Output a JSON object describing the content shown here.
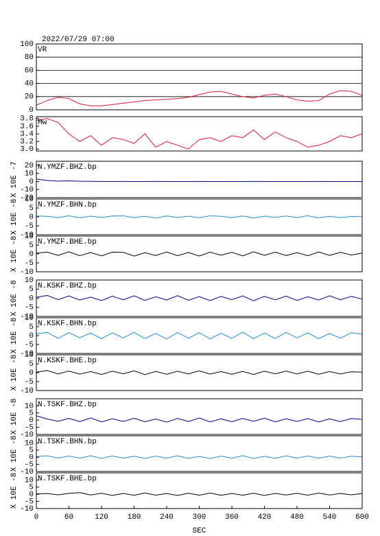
{
  "chart_data": [
    {
      "type": "line",
      "title": "2022/07/29 07:00",
      "xlim": [
        0,
        600
      ],
      "x": [
        0,
        20,
        40,
        60,
        80,
        100,
        120,
        140,
        160,
        180,
        200,
        220,
        240,
        260,
        280,
        300,
        320,
        340,
        360,
        380,
        400,
        420,
        440,
        460,
        480,
        500,
        520,
        540,
        560,
        580,
        600
      ],
      "ylim": [
        0,
        100
      ],
      "yticks": [
        0,
        20,
        40,
        60,
        80,
        100
      ],
      "grid": true,
      "series": [
        {
          "name": "VR",
          "color": "#e0143c",
          "values": [
            7,
            14,
            19,
            17,
            9,
            6,
            6,
            8,
            10,
            12,
            14,
            15,
            16,
            17,
            19,
            23,
            27,
            28,
            24,
            20,
            18,
            22,
            24,
            20,
            15,
            13,
            14,
            24,
            29,
            28,
            22
          ]
        }
      ]
    },
    {
      "type": "line",
      "xlim": [
        0,
        600
      ],
      "x": [
        0,
        20,
        40,
        60,
        80,
        100,
        120,
        140,
        160,
        180,
        200,
        220,
        240,
        260,
        280,
        300,
        320,
        340,
        360,
        380,
        400,
        420,
        440,
        460,
        480,
        500,
        520,
        540,
        560,
        580,
        600
      ],
      "ylim": [
        2.95,
        3.85
      ],
      "yticks": [
        {
          "value": 3,
          "label": "3.0"
        },
        3.2,
        3.4,
        3.6,
        3.8
      ],
      "grid": false,
      "series": [
        {
          "name": "Mw",
          "color": "#e0143c",
          "values": [
            3.75,
            3.8,
            3.7,
            3.4,
            3.2,
            3.35,
            3.1,
            3.3,
            3.25,
            3.15,
            3.4,
            3.05,
            3.2,
            3.1,
            3,
            3.25,
            3.3,
            3.2,
            3.35,
            3.3,
            3.5,
            3.25,
            3.45,
            3.3,
            3.2,
            3.05,
            3.1,
            3.2,
            3.35,
            3.3,
            3.4
          ]
        }
      ]
    },
    {
      "type": "line",
      "ylabel": "X 10E -7",
      "xlim": [
        0,
        600
      ],
      "x": [
        0,
        20,
        40,
        60,
        80,
        100,
        120,
        140,
        160,
        180,
        200,
        220,
        240,
        260,
        280,
        300,
        320,
        340,
        360,
        380,
        400,
        420,
        440,
        460,
        480,
        500,
        520,
        540,
        560,
        580,
        600
      ],
      "ylim": [
        -20,
        25
      ],
      "yticks": [
        -20,
        -10,
        0,
        10,
        20
      ],
      "grid": false,
      "series": [
        {
          "name": "N.YMZF.BHZ.bp",
          "color": "#00008b",
          "values": [
            3,
            1.2,
            0.5,
            0.8,
            0.3,
            0.2,
            0.1,
            0,
            0.1,
            0,
            0,
            0.1,
            0,
            0,
            0,
            0.1,
            0,
            0,
            0,
            0,
            0.1,
            0,
            0,
            0,
            0,
            0,
            0.1,
            0,
            0,
            0,
            0
          ]
        }
      ]
    },
    {
      "type": "line",
      "ylabel": "X 10E -8",
      "xlim": [
        0,
        600
      ],
      "x": [
        0,
        20,
        40,
        60,
        80,
        100,
        120,
        140,
        160,
        180,
        200,
        220,
        240,
        260,
        280,
        300,
        320,
        340,
        360,
        380,
        400,
        420,
        440,
        460,
        480,
        500,
        520,
        540,
        560,
        580,
        600
      ],
      "ylim": [
        -10,
        10
      ],
      "yticks": [
        -10,
        -5,
        0,
        5,
        10
      ],
      "grid": false,
      "series": [
        {
          "name": "N.YMZF.BHN.bp",
          "color": "#1e8fd0",
          "values": [
            0.5,
            0.3,
            -0.4,
            0.6,
            -0.5,
            0.4,
            -0.3,
            0.5,
            0.6,
            -0.4,
            0.3,
            -0.6,
            0.5,
            -0.3,
            0.4,
            -0.5,
            0.6,
            0.3,
            -0.4,
            0.5,
            -0.6,
            0.4,
            -0.3,
            0.5,
            -0.4,
            0.6,
            -0.5,
            0.3,
            -0.4,
            0.2,
            0.1
          ]
        }
      ]
    },
    {
      "type": "line",
      "ylabel": "X 10E -8",
      "xlim": [
        0,
        600
      ],
      "x": [
        0,
        20,
        40,
        60,
        80,
        100,
        120,
        140,
        160,
        180,
        200,
        220,
        240,
        260,
        280,
        300,
        320,
        340,
        360,
        380,
        400,
        420,
        440,
        460,
        480,
        500,
        520,
        540,
        560,
        580,
        600
      ],
      "ylim": [
        -10,
        10
      ],
      "yticks": [
        -10,
        -5,
        0,
        5,
        10
      ],
      "grid": false,
      "series": [
        {
          "name": "N.YMZF.BHE.bp",
          "color": "#000000",
          "values": [
            0.5,
            1,
            -0.8,
            1.2,
            -1,
            0.8,
            -1.1,
            1,
            0.9,
            -1.2,
            0.7,
            -0.9,
            1.1,
            -1,
            0.8,
            -1.2,
            1,
            -0.7,
            0.9,
            -1.1,
            1.2,
            -0.8,
            1,
            -0.9,
            0.7,
            -1,
            1.1,
            -0.8,
            0.9,
            -0.6,
            0.5
          ]
        }
      ]
    },
    {
      "type": "line",
      "ylabel": "X 10E -8",
      "xlim": [
        0,
        600
      ],
      "x": [
        0,
        20,
        40,
        60,
        80,
        100,
        120,
        140,
        160,
        180,
        200,
        220,
        240,
        260,
        280,
        300,
        320,
        340,
        360,
        380,
        400,
        420,
        440,
        460,
        480,
        500,
        520,
        540,
        560,
        580,
        600
      ],
      "ylim": [
        -10,
        10
      ],
      "yticks": [
        -10,
        -5,
        0,
        5,
        10
      ],
      "grid": false,
      "series": [
        {
          "name": "N.KSKF.BHZ.bp",
          "color": "#00008b",
          "values": [
            0.5,
            1.5,
            -0.8,
            1.2,
            -1,
            0.6,
            -1.3,
            1.1,
            -0.9,
            1.3,
            -1.2,
            0.8,
            -1,
            1.4,
            -1.1,
            0.9,
            -1.3,
            1,
            -0.8,
            1.2,
            -1.4,
            1,
            -0.9,
            1.1,
            -1.2,
            0.8,
            -1,
            1.3,
            -0.9,
            1,
            -0.5
          ]
        }
      ]
    },
    {
      "type": "line",
      "ylabel": "X 10E -8",
      "xlim": [
        0,
        600
      ],
      "x": [
        0,
        20,
        40,
        60,
        80,
        100,
        120,
        140,
        160,
        180,
        200,
        220,
        240,
        260,
        280,
        300,
        320,
        340,
        360,
        380,
        400,
        420,
        440,
        460,
        480,
        500,
        520,
        540,
        560,
        580,
        600
      ],
      "ylim": [
        -10,
        10
      ],
      "yticks": [
        -10,
        -5,
        0,
        5,
        10
      ],
      "grid": false,
      "series": [
        {
          "name": "N.KSKF.BHN.bp",
          "color": "#1e8fd0",
          "values": [
            1,
            1.8,
            -1.5,
            1.6,
            -1.2,
            1.4,
            -1.7,
            1.5,
            -1.3,
            1.8,
            -1.6,
            1.2,
            -1.9,
            1.7,
            -1.4,
            1.6,
            -1.8,
            1.3,
            -1.5,
            1.9,
            -1.7,
            1.4,
            -1.6,
            1.8,
            -1.3,
            1.5,
            -1.7,
            1.2,
            -1.4,
            1.6,
            0.8
          ]
        }
      ]
    },
    {
      "type": "line",
      "ylabel": "X 10E -8",
      "xlim": [
        0,
        600
      ],
      "x": [
        0,
        20,
        40,
        60,
        80,
        100,
        120,
        140,
        160,
        180,
        200,
        220,
        240,
        260,
        280,
        300,
        320,
        340,
        360,
        380,
        400,
        420,
        440,
        460,
        480,
        500,
        520,
        540,
        560,
        580,
        600
      ],
      "ylim": [
        -10,
        10
      ],
      "yticks": [
        -10,
        -5,
        0,
        5,
        10
      ],
      "grid": false,
      "series": [
        {
          "name": "N.KSKF.BHE.bp",
          "color": "#000000",
          "values": [
            0.3,
            1.2,
            -0.7,
            0.9,
            -0.8,
            0.6,
            -1,
            0.8,
            -0.6,
            1,
            -1.1,
            0.7,
            -0.9,
            0.8,
            -0.7,
            1,
            -0.8,
            0.6,
            -0.9,
            0.7,
            -1,
            0.8,
            -0.6,
            0.9,
            -0.7,
            0.8,
            -0.9,
            0.6,
            -0.7,
            0.5,
            0.3
          ]
        }
      ]
    },
    {
      "type": "line",
      "ylabel": "X 10E -8",
      "xlim": [
        0,
        600
      ],
      "x": [
        0,
        20,
        40,
        60,
        80,
        100,
        120,
        140,
        160,
        180,
        200,
        220,
        240,
        260,
        280,
        300,
        320,
        340,
        360,
        380,
        400,
        420,
        440,
        460,
        480,
        500,
        520,
        540,
        560,
        580,
        600
      ],
      "ylim": [
        -10,
        15
      ],
      "yticks": [
        -10,
        -5,
        0,
        5,
        10
      ],
      "grid": false,
      "series": [
        {
          "name": "N.TSKF.BHZ.bp",
          "color": "#00008b",
          "values": [
            3,
            0.8,
            -0.8,
            1.2,
            -1,
            1.5,
            -1.2,
            1,
            -0.9,
            1.3,
            -1.1,
            0.8,
            -1.4,
            1.2,
            -1,
            1.5,
            -1.3,
            0.9,
            -1.1,
            1.2,
            -0.8,
            1.4,
            -1.2,
            1,
            -0.9,
            1.1,
            -1.3,
            0.9,
            -1,
            1.1,
            0.5
          ]
        }
      ]
    },
    {
      "type": "line",
      "ylabel": "X 10E -8",
      "xlim": [
        0,
        600
      ],
      "x": [
        0,
        20,
        40,
        60,
        80,
        100,
        120,
        140,
        160,
        180,
        200,
        220,
        240,
        260,
        280,
        300,
        320,
        340,
        360,
        380,
        400,
        420,
        440,
        460,
        480,
        500,
        520,
        540,
        560,
        580,
        600
      ],
      "ylim": [
        -10,
        15
      ],
      "yticks": [
        -10,
        -5,
        0,
        5,
        10
      ],
      "grid": false,
      "series": [
        {
          "name": "N.TSKF.BHN.bp",
          "color": "#1e8fd0",
          "values": [
            0.5,
            1,
            -0.6,
            0.8,
            -0.7,
            1,
            -0.8,
            0.9,
            -0.6,
            0.7,
            -0.9,
            0.8,
            -0.7,
            1,
            -0.8,
            0.6,
            -0.9,
            0.8,
            -0.7,
            1.1,
            -0.9,
            0.7,
            -0.8,
            1,
            -0.6,
            0.9,
            -0.7,
            0.8,
            -0.6,
            0.7,
            0.3
          ]
        }
      ]
    },
    {
      "type": "line",
      "ylabel": "X 10E -8",
      "xlabel": "SEC",
      "xlim": [
        0,
        600
      ],
      "xticks": [
        0,
        60,
        120,
        180,
        240,
        300,
        360,
        420,
        480,
        540,
        600
      ],
      "x": [
        0,
        20,
        40,
        60,
        80,
        100,
        120,
        140,
        160,
        180,
        200,
        220,
        240,
        260,
        280,
        300,
        320,
        340,
        360,
        380,
        400,
        420,
        440,
        460,
        480,
        500,
        520,
        540,
        560,
        580,
        600
      ],
      "ylim": [
        -10,
        15
      ],
      "yticks": [
        -10,
        -5,
        0,
        5,
        10
      ],
      "grid": false,
      "series": [
        {
          "name": "N.TSKF.BHE.bp",
          "color": "#000000",
          "values": [
            0.3,
            0.5,
            -0.4,
            0.6,
            1.2,
            -0.5,
            0.7,
            -0.8,
            0.6,
            -0.7,
            0.9,
            -0.6,
            0.5,
            -0.8,
            0.7,
            -0.6,
            0.8,
            -0.7,
            0.5,
            -0.6,
            0.7,
            -0.8,
            0.6,
            -0.5,
            0.7,
            -0.6,
            0.8,
            -0.5,
            0.6,
            -0.4,
            0.5
          ]
        }
      ]
    }
  ]
}
